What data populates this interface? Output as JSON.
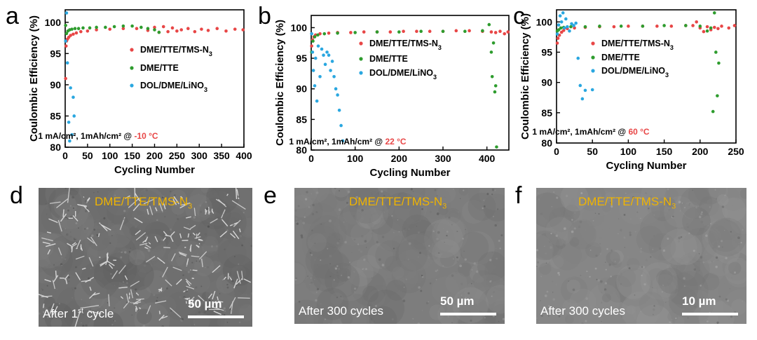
{
  "panel_letters": [
    "a",
    "b",
    "c",
    "d",
    "e",
    "f"
  ],
  "chart_data": [
    {
      "type": "scatter",
      "panel": "a",
      "xlabel": "Cycling Number",
      "ylabel": "Coulombic Efficiency (%)",
      "xlim": [
        0,
        400
      ],
      "ylim": [
        80,
        102
      ],
      "xticks": [
        0,
        50,
        100,
        150,
        200,
        250,
        300,
        350,
        400
      ],
      "yticks": [
        80,
        85,
        90,
        95,
        100
      ],
      "grid": false,
      "legend_placement": "right",
      "condition_text": "1 mA/cm², 1mAh/cm² @ ",
      "condition_temp": "-10 °C",
      "series": [
        {
          "name": "DME/TTE/TMS-N3",
          "color": "#e84646",
          "x": [
            1,
            2,
            3,
            5,
            8,
            12,
            18,
            25,
            35,
            50,
            70,
            100,
            130,
            160,
            185,
            200,
            210,
            220,
            230,
            240,
            250,
            260,
            275,
            290,
            305,
            320,
            340,
            360,
            380,
            398
          ],
          "y": [
            91.0,
            96.2,
            97.0,
            97.3,
            97.6,
            97.9,
            98.1,
            98.3,
            98.5,
            98.6,
            98.8,
            98.9,
            99.0,
            99.0,
            98.7,
            99.2,
            98.4,
            99.3,
            98.5,
            99.1,
            98.6,
            98.8,
            99.0,
            98.5,
            98.9,
            98.7,
            99.0,
            98.6,
            98.9,
            98.8
          ]
        },
        {
          "name": "DME/TTE",
          "color": "#2e9c2e",
          "x": [
            1,
            3,
            6,
            10,
            15,
            22,
            30,
            40,
            55,
            70,
            90,
            110,
            130,
            150,
            170,
            185,
            200,
            210
          ],
          "y": [
            99.5,
            98.2,
            98.6,
            98.8,
            98.9,
            99.0,
            99.0,
            99.1,
            99.1,
            99.2,
            99.2,
            99.3,
            99.4,
            99.4,
            99.2,
            99.0,
            98.8,
            98.4
          ]
        },
        {
          "name": "DOL/DME/LiNO3",
          "color": "#2aa7e0",
          "x": [
            1,
            3,
            5,
            8,
            10,
            12,
            15,
            18,
            20
          ],
          "y": [
            97.0,
            101.5,
            93.5,
            84.0,
            81.0,
            89.5,
            82.0,
            88.0,
            85.0
          ]
        }
      ]
    },
    {
      "type": "scatter",
      "panel": "b",
      "xlabel": "Cycling Number",
      "ylabel": "Coulombic Efficiency (%)",
      "xlim": [
        0,
        450
      ],
      "ylim": [
        80,
        102
      ],
      "xticks": [
        0,
        100,
        200,
        300,
        400
      ],
      "yticks": [
        80,
        85,
        90,
        95,
        100
      ],
      "grid": false,
      "legend_placement": "right",
      "condition_text": "1 mA/cm², 1mAh/cm² @ ",
      "condition_temp": "22 °C",
      "series": [
        {
          "name": "DME/TTE/TMS-N3",
          "color": "#e84646",
          "x": [
            1,
            3,
            6,
            10,
            20,
            40,
            60,
            90,
            120,
            150,
            180,
            210,
            240,
            270,
            300,
            330,
            360,
            390,
            410,
            420,
            430,
            440,
            448
          ],
          "y": [
            97.0,
            98.0,
            98.5,
            98.8,
            99.0,
            99.1,
            99.2,
            99.2,
            99.3,
            99.3,
            99.3,
            99.4,
            99.4,
            99.4,
            99.4,
            99.5,
            99.5,
            99.4,
            99.3,
            99.2,
            99.4,
            99.0,
            99.3
          ]
        },
        {
          "name": "DME/TTE",
          "color": "#2e9c2e",
          "x": [
            1,
            4,
            8,
            15,
            30,
            60,
            100,
            150,
            200,
            250,
            300,
            350,
            390,
            405,
            410,
            412,
            415,
            418,
            420,
            422
          ],
          "y": [
            96.0,
            97.8,
            98.5,
            98.8,
            99.0,
            99.1,
            99.2,
            99.3,
            99.3,
            99.4,
            99.4,
            99.4,
            99.5,
            100.5,
            96.0,
            92.0,
            97.5,
            89.5,
            90.5,
            80.5
          ]
        },
        {
          "name": "DOL/DME/LiNO3",
          "color": "#2aa7e0",
          "x": [
            1,
            3,
            5,
            8,
            10,
            13,
            16,
            20,
            24,
            28,
            32,
            36,
            40,
            44,
            48,
            52,
            56,
            60,
            64,
            68,
            72
          ],
          "y": [
            99.0,
            96.0,
            93.0,
            90.5,
            95.0,
            88.0,
            97.0,
            92.0,
            96.5,
            95.5,
            94.0,
            96.0,
            95.5,
            93.0,
            94.5,
            92.0,
            90.0,
            89.0,
            86.5,
            84.0,
            81.5
          ]
        }
      ]
    },
    {
      "type": "scatter",
      "panel": "c",
      "xlabel": "Cycling Number",
      "ylabel": "Coulombic Efficiency (%)",
      "xlim": [
        0,
        250
      ],
      "ylim": [
        80,
        102
      ],
      "xticks": [
        0,
        50,
        100,
        150,
        200,
        250
      ],
      "yticks": [
        80,
        85,
        90,
        95,
        100
      ],
      "grid": false,
      "legend_placement": "right",
      "condition_text": "1 mA/cm², 1mAh/cm² @ ",
      "condition_temp": "60 °C",
      "series": [
        {
          "name": "DME/TTE/TMS-N3",
          "color": "#e84646",
          "x": [
            1,
            2,
            4,
            7,
            10,
            15,
            25,
            40,
            60,
            80,
            100,
            120,
            140,
            160,
            180,
            190,
            195,
            200,
            205,
            210,
            215,
            220,
            225,
            230,
            240,
            248
          ],
          "y": [
            96.5,
            97.3,
            97.8,
            98.3,
            98.6,
            98.9,
            99.0,
            99.1,
            99.2,
            99.2,
            99.3,
            99.3,
            99.3,
            99.3,
            99.4,
            99.4,
            100.0,
            99.0,
            98.4,
            99.2,
            98.7,
            99.1,
            98.9,
            99.3,
            99.0,
            99.4
          ]
        },
        {
          "name": "DME/TTE",
          "color": "#2e9c2e",
          "x": [
            1,
            3,
            6,
            10,
            20,
            40,
            60,
            90,
            120,
            150,
            180,
            200,
            210,
            215,
            218,
            220,
            222,
            224,
            226
          ],
          "y": [
            98.5,
            98.7,
            99.0,
            99.1,
            99.2,
            99.2,
            99.3,
            99.3,
            99.3,
            99.4,
            99.4,
            99.3,
            98.5,
            99.0,
            85.2,
            101.5,
            95.0,
            87.8,
            93.2
          ]
        },
        {
          "name": "DOL/DME/LiNO3",
          "color": "#2aa7e0",
          "x": [
            1,
            3,
            5,
            7,
            9,
            11,
            13,
            15,
            18,
            21,
            24,
            27,
            30,
            33,
            36,
            40,
            50
          ],
          "y": [
            98.0,
            99.5,
            101.0,
            100.0,
            101.5,
            99.0,
            100.5,
            99.2,
            98.5,
            99.7,
            99.4,
            99.8,
            94.0,
            89.5,
            87.3,
            88.7,
            88.8
          ]
        }
      ]
    }
  ],
  "sem": [
    {
      "panel": "d",
      "title": "DME/TTE/TMS-N",
      "title_sub": "3",
      "caption_pre": "After 1",
      "caption_sup": "st",
      "caption_post": " cycle",
      "scale": "50 µm"
    },
    {
      "panel": "e",
      "title": "DME/TTE/TMS-N",
      "title_sub": "3",
      "caption_pre": "After 300 cycles",
      "caption_sup": "",
      "caption_post": "",
      "scale": "50 µm"
    },
    {
      "panel": "f",
      "title": "DME/TTE/TMS-N",
      "title_sub": "3",
      "caption_pre": "After 300 cycles",
      "caption_sup": "",
      "caption_post": "",
      "scale": "10 µm"
    }
  ],
  "colors": {
    "temp_highlight": "#e84646",
    "sem_title": "#f0b400"
  }
}
